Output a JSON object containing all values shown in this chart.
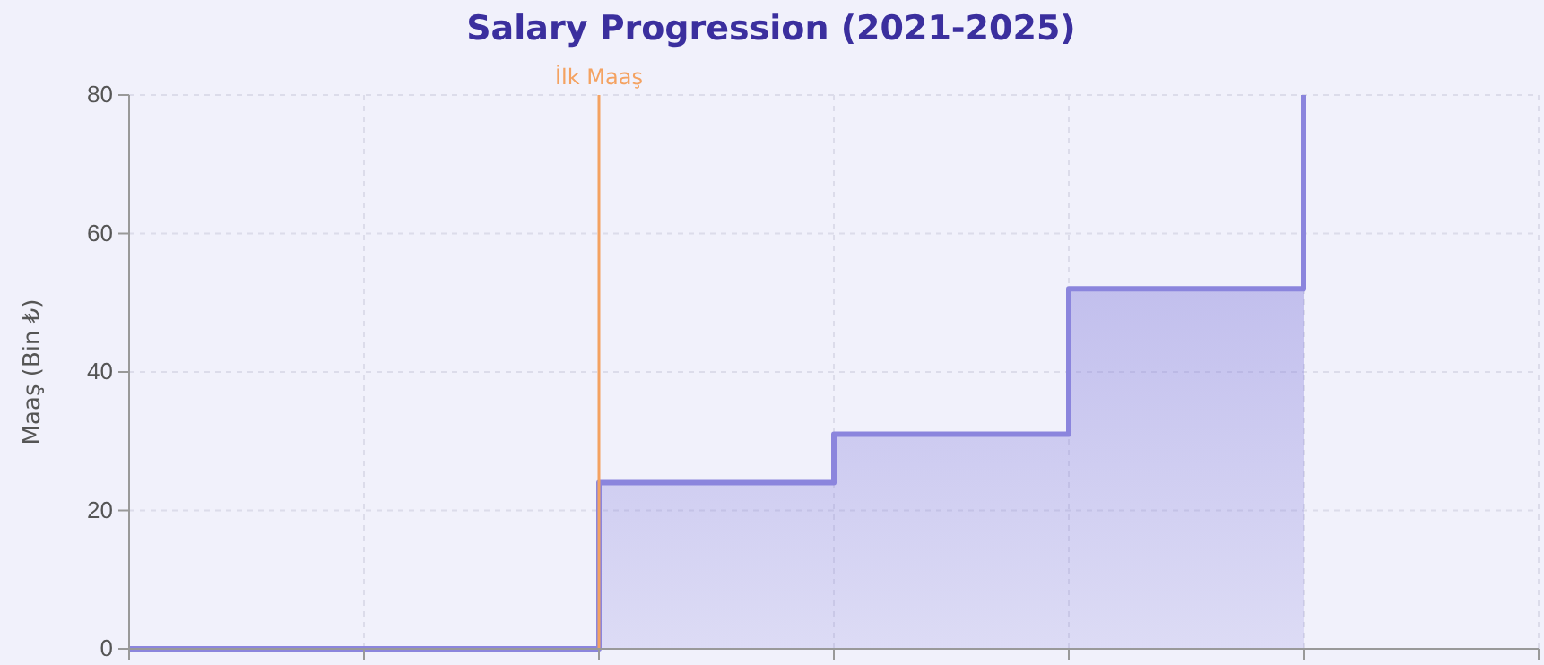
{
  "chart_data": {
    "type": "step",
    "title": "Salary Progression (2021-2025)",
    "ylabel": "Maaş (Bin ₺)",
    "categories": [
      null,
      null,
      null,
      null,
      null,
      null
    ],
    "series": [
      {
        "color": "#8b85dd",
        "values": [
          0,
          0,
          24,
          31,
          52,
          80
        ]
      }
    ],
    "ylim": [
      0,
      80
    ],
    "yticks": [
      0,
      20,
      40,
      60,
      80
    ],
    "grid": true,
    "annotations": [
      "İlk Maaş"
    ]
  }
}
